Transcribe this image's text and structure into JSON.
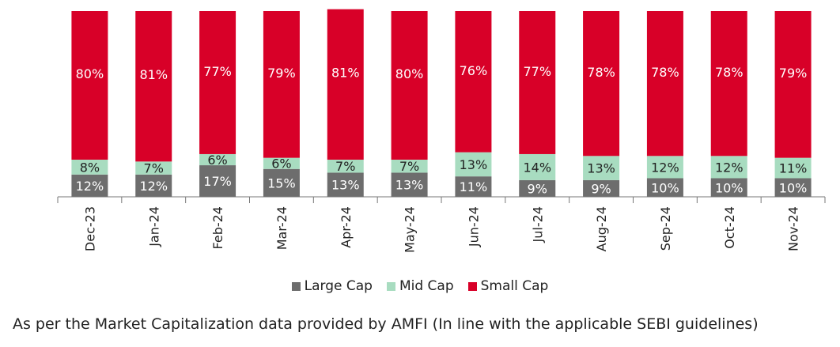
{
  "chart_data": {
    "type": "bar",
    "stacked": true,
    "categories": [
      "Dec-23",
      "Jan-24",
      "Feb-24",
      "Mar-24",
      "Apr-24",
      "May-24",
      "Jun-24",
      "Jul-24",
      "Aug-24",
      "Sep-24",
      "Oct-24",
      "Nov-24"
    ],
    "series": [
      {
        "name": "Large Cap",
        "color": "#6d6d6d",
        "values": [
          12,
          12,
          17,
          15,
          13,
          13,
          11,
          9,
          9,
          10,
          10,
          10
        ]
      },
      {
        "name": "Mid Cap",
        "color": "#a8dcc0",
        "values": [
          8,
          7,
          6,
          6,
          7,
          7,
          13,
          14,
          13,
          12,
          12,
          11
        ]
      },
      {
        "name": "Small Cap",
        "color": "#d80028",
        "values": [
          80,
          81,
          77,
          79,
          81,
          80,
          76,
          77,
          78,
          78,
          78,
          79
        ]
      }
    ],
    "value_suffix": "%",
    "ylim": [
      0,
      100
    ],
    "grid": false,
    "legend_position": "bottom"
  },
  "footnote": "As per the Market Capitalization data provided by AMFI (In line with the applicable SEBI guidelines)"
}
